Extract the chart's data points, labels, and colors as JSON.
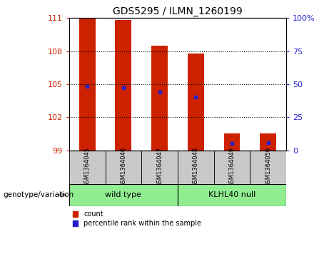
{
  "title": "GDS5295 / ILMN_1260199",
  "samples": [
    "GSM1364045",
    "GSM1364046",
    "GSM1364047",
    "GSM1364048",
    "GSM1364049",
    "GSM1364050"
  ],
  "bar_base": 99,
  "bar_tops": [
    111.0,
    110.8,
    108.5,
    107.8,
    100.5,
    100.5
  ],
  "blue_markers": [
    104.8,
    104.7,
    104.3,
    103.8,
    99.6,
    99.7
  ],
  "ylim": [
    99,
    111
  ],
  "yticks_left": [
    99,
    102,
    105,
    108,
    111
  ],
  "yticks_right": [
    0,
    25,
    50,
    75,
    100
  ],
  "bar_color": "#cc2200",
  "blue_color": "#2222cc",
  "sample_bg": "#c8c8c8",
  "group1_color": "#90ee90",
  "group2_color": "#90ee90",
  "group1_label": "wild type",
  "group2_label": "KLHL40 null",
  "group1_samples": [
    0,
    1,
    2
  ],
  "group2_samples": [
    3,
    4,
    5
  ],
  "left_tick_color": "#cc2200",
  "right_tick_color": "#2222cc",
  "bar_width": 0.45,
  "legend_red_label": "count",
  "legend_blue_label": "percentile rank within the sample",
  "genotype_label": "genotype/variation"
}
